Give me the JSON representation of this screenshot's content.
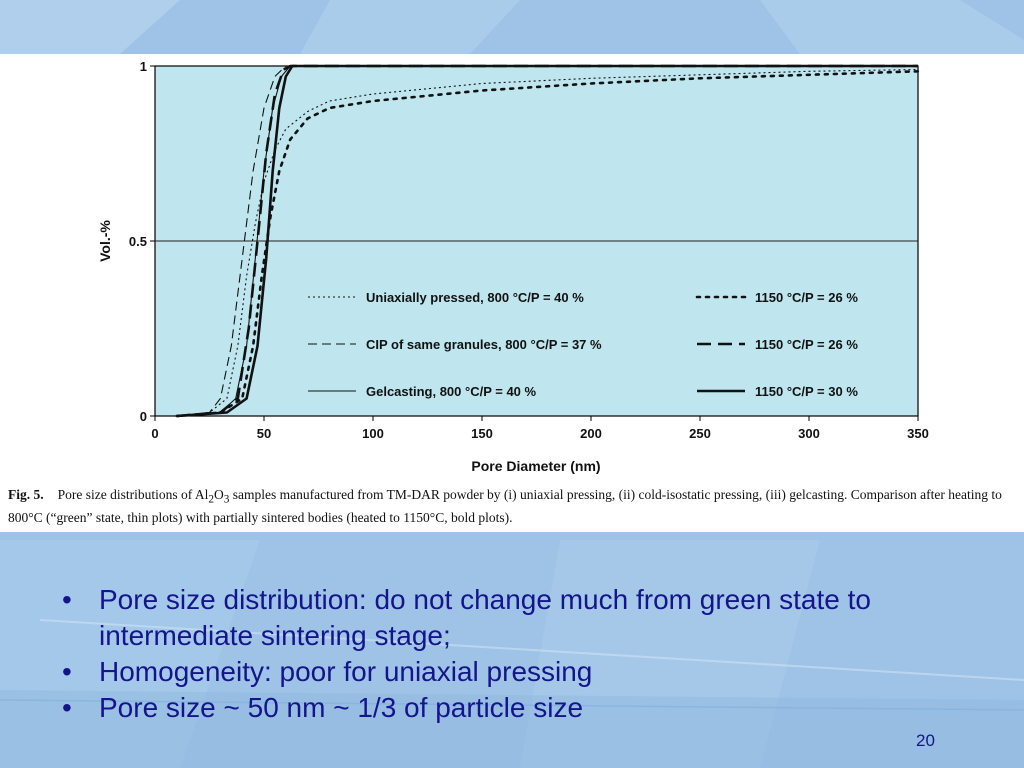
{
  "chart_data": {
    "type": "line",
    "title": "",
    "xlabel": "Pore Diameter (nm)",
    "ylabel": "Vol.-%",
    "xlim": [
      0,
      350
    ],
    "ylim": [
      0,
      1
    ],
    "x_ticks": [
      "0",
      "50",
      "100",
      "150",
      "200",
      "250",
      "300",
      "350"
    ],
    "y_ticks": [
      "0",
      "0.5",
      "1"
    ],
    "reference_line_y": 0.5,
    "grid": false,
    "legend_position": "lower-right",
    "plot_background": "#bfe6ee",
    "series": [
      {
        "name": "Uniaxially pressed, 800 °C/P = 40 %",
        "dash": "dotted",
        "weight": "thin",
        "points": [
          [
            10,
            0
          ],
          [
            25,
            0.01
          ],
          [
            33,
            0.05
          ],
          [
            38,
            0.2
          ],
          [
            42,
            0.4
          ],
          [
            46,
            0.55
          ],
          [
            50,
            0.67
          ],
          [
            55,
            0.76
          ],
          [
            60,
            0.82
          ],
          [
            70,
            0.87
          ],
          [
            80,
            0.9
          ],
          [
            100,
            0.92
          ],
          [
            150,
            0.95
          ],
          [
            200,
            0.965
          ],
          [
            250,
            0.975
          ],
          [
            300,
            0.985
          ],
          [
            350,
            0.99
          ]
        ]
      },
      {
        "name": "CIP of same granules, 800 °C/P = 37 %",
        "dash": "dashed",
        "weight": "thin",
        "points": [
          [
            10,
            0
          ],
          [
            25,
            0.01
          ],
          [
            30,
            0.05
          ],
          [
            35,
            0.2
          ],
          [
            40,
            0.45
          ],
          [
            45,
            0.7
          ],
          [
            50,
            0.88
          ],
          [
            55,
            0.97
          ],
          [
            60,
            1
          ],
          [
            350,
            1
          ]
        ]
      },
      {
        "name": "Gelcasting, 800 °C/P = 40 %",
        "dash": "solid",
        "weight": "thin",
        "points": [
          [
            10,
            0
          ],
          [
            30,
            0.01
          ],
          [
            37,
            0.05
          ],
          [
            42,
            0.2
          ],
          [
            46,
            0.45
          ],
          [
            50,
            0.7
          ],
          [
            54,
            0.88
          ],
          [
            58,
            0.97
          ],
          [
            62,
            1
          ],
          [
            350,
            1
          ]
        ]
      },
      {
        "name": "1150 °C/P = 26 %",
        "dash": "dotted",
        "weight": "bold",
        "points": [
          [
            10,
            0
          ],
          [
            30,
            0.01
          ],
          [
            40,
            0.05
          ],
          [
            45,
            0.2
          ],
          [
            49,
            0.4
          ],
          [
            53,
            0.57
          ],
          [
            57,
            0.7
          ],
          [
            62,
            0.79
          ],
          [
            70,
            0.85
          ],
          [
            80,
            0.88
          ],
          [
            100,
            0.9
          ],
          [
            150,
            0.93
          ],
          [
            200,
            0.95
          ],
          [
            250,
            0.965
          ],
          [
            300,
            0.975
          ],
          [
            350,
            0.985
          ]
        ]
      },
      {
        "name": "1150 °C/P = 26 %",
        "dash": "dashed",
        "weight": "bold",
        "points": [
          [
            10,
            0
          ],
          [
            30,
            0.01
          ],
          [
            38,
            0.05
          ],
          [
            43,
            0.25
          ],
          [
            47,
            0.5
          ],
          [
            51,
            0.75
          ],
          [
            55,
            0.92
          ],
          [
            59,
            0.99
          ],
          [
            62,
            1
          ],
          [
            350,
            1
          ]
        ]
      },
      {
        "name": "1150 °C/P = 30 %",
        "dash": "solid",
        "weight": "bold",
        "points": [
          [
            10,
            0
          ],
          [
            33,
            0.01
          ],
          [
            42,
            0.05
          ],
          [
            47,
            0.2
          ],
          [
            51,
            0.45
          ],
          [
            54,
            0.7
          ],
          [
            57,
            0.88
          ],
          [
            60,
            0.97
          ],
          [
            63,
            1
          ],
          [
            350,
            1
          ]
        ]
      }
    ]
  },
  "caption": {
    "figno": "Fig. 5.",
    "text_before_sub1": "Pore size distributions of Al",
    "sub1": "2",
    "text_mid": "O",
    "sub2": "3",
    "text_after": " samples manufactured from TM-DAR powder by (i) uniaxial pressing, (ii) cold-isostatic pressing, (iii) gelcasting. Comparison after heating to 800°C (“green” state, thin plots) with partially sintered bodies (heated to 1150°C, bold plots)."
  },
  "bullets": [
    "Pore size distribution: do not change much from green state to intermediate sintering stage;",
    "Homogeneity: poor for uniaxial pressing",
    "Pore size ~ 50 nm ~ 1/3 of particle size"
  ],
  "page_number": "20"
}
